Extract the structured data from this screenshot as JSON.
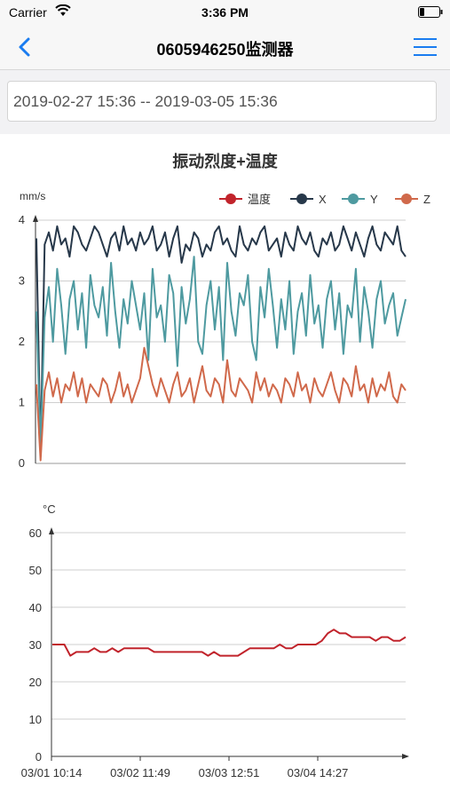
{
  "status_bar": {
    "carrier": "Carrier",
    "time": "3:36 PM"
  },
  "nav": {
    "title": "0605946250监测器",
    "back_icon": "chevron-left-icon",
    "menu_icon": "hamburger-menu-icon"
  },
  "date_range": {
    "value": "2019-02-27 15:36 -- 2019-03-05 15:36"
  },
  "colors": {
    "accent": "#1a7cf0",
    "temp": "#c1232b",
    "x": "#27384a",
    "y": "#4e9aa0",
    "z": "#d0694b"
  },
  "chart_data": [
    {
      "type": "line",
      "title": "振动烈度+温度",
      "ylabel": "mm/s",
      "ylim": [
        0,
        4
      ],
      "yticks": [
        "0",
        "1",
        "2",
        "3",
        "4"
      ],
      "legend": [
        "温度",
        "X",
        "Y",
        "Z"
      ],
      "legend_position": "top-right",
      "grid": true,
      "series": [
        {
          "name": "X",
          "color": "#27384a",
          "values": [
            3.7,
            0.2,
            3.6,
            3.8,
            3.5,
            3.9,
            3.6,
            3.7,
            3.4,
            3.9,
            3.8,
            3.6,
            3.5,
            3.7,
            3.9,
            3.8,
            3.6,
            3.4,
            3.7,
            3.8,
            3.5,
            3.9,
            3.6,
            3.7,
            3.5,
            3.8,
            3.6,
            3.7,
            3.9,
            3.5,
            3.6,
            3.8,
            3.4,
            3.7,
            3.9,
            3.3,
            3.6,
            3.5,
            3.8,
            3.7,
            3.4,
            3.6,
            3.5,
            3.8,
            3.9,
            3.6,
            3.7,
            3.5,
            3.4,
            3.9,
            3.6,
            3.5,
            3.7,
            3.6,
            3.8,
            3.9,
            3.5,
            3.6,
            3.7,
            3.4,
            3.8,
            3.6,
            3.5,
            3.9,
            3.7,
            3.6,
            3.8,
            3.5,
            3.4,
            3.7,
            3.6,
            3.8,
            3.5,
            3.6,
            3.9,
            3.7,
            3.5,
            3.8,
            3.6,
            3.4,
            3.7,
            3.9,
            3.6,
            3.5,
            3.8,
            3.7,
            3.6,
            3.9,
            3.5,
            3.4
          ]
        },
        {
          "name": "Y",
          "color": "#4e9aa0",
          "values": [
            2.5,
            0.3,
            2.4,
            2.9,
            2.0,
            3.2,
            2.6,
            1.8,
            2.7,
            3.0,
            2.2,
            2.8,
            1.9,
            3.1,
            2.6,
            2.4,
            2.9,
            2.1,
            3.3,
            2.5,
            1.9,
            2.7,
            2.3,
            3.0,
            2.6,
            2.2,
            2.8,
            1.7,
            3.2,
            2.4,
            2.6,
            2.0,
            3.1,
            2.8,
            1.6,
            2.9,
            2.3,
            2.7,
            3.4,
            2.0,
            1.8,
            2.6,
            3.0,
            2.2,
            2.9,
            1.7,
            3.3,
            2.5,
            2.1,
            2.8,
            2.6,
            3.1,
            2.0,
            1.7,
            2.9,
            2.4,
            3.2,
            2.6,
            1.9,
            2.7,
            2.2,
            3.0,
            1.8,
            2.5,
            2.8,
            2.1,
            3.1,
            2.3,
            2.6,
            1.9,
            2.7,
            3.0,
            2.2,
            2.8,
            1.8,
            2.6,
            2.4,
            3.2,
            2.0,
            2.9,
            2.5,
            1.9,
            2.7,
            3.0,
            2.3,
            2.6,
            2.8,
            2.1,
            2.4,
            2.7
          ]
        },
        {
          "name": "Z",
          "color": "#d0694b",
          "values": [
            1.3,
            0.05,
            1.2,
            1.5,
            1.1,
            1.4,
            1.0,
            1.3,
            1.2,
            1.5,
            1.1,
            1.4,
            1.0,
            1.3,
            1.2,
            1.1,
            1.4,
            1.3,
            1.0,
            1.2,
            1.5,
            1.1,
            1.3,
            1.0,
            1.2,
            1.4,
            1.9,
            1.6,
            1.3,
            1.1,
            1.4,
            1.2,
            1.0,
            1.3,
            1.5,
            1.1,
            1.2,
            1.4,
            1.0,
            1.3,
            1.6,
            1.2,
            1.1,
            1.4,
            1.3,
            1.0,
            1.7,
            1.2,
            1.1,
            1.4,
            1.3,
            1.2,
            1.0,
            1.5,
            1.2,
            1.4,
            1.1,
            1.3,
            1.2,
            1.0,
            1.4,
            1.3,
            1.1,
            1.5,
            1.2,
            1.3,
            1.0,
            1.4,
            1.2,
            1.1,
            1.3,
            1.5,
            1.2,
            1.0,
            1.4,
            1.3,
            1.1,
            1.6,
            1.2,
            1.3,
            1.0,
            1.4,
            1.1,
            1.3,
            1.2,
            1.5,
            1.1,
            1.0,
            1.3,
            1.2
          ]
        }
      ]
    },
    {
      "type": "line",
      "ylabel": "°C",
      "ylim": [
        0,
        60
      ],
      "yticks": [
        "0",
        "10",
        "20",
        "30",
        "40",
        "50",
        "60"
      ],
      "xticks": [
        "03/01 10:14",
        "03/02 11:49",
        "03/03 12:51",
        "03/04 14:27"
      ],
      "grid": true,
      "series": [
        {
          "name": "温度",
          "color": "#c1232b",
          "values": [
            30,
            30,
            30,
            27,
            28,
            28,
            28,
            29,
            28,
            28,
            29,
            28,
            29,
            29,
            29,
            29,
            29,
            28,
            28,
            28,
            28,
            28,
            28,
            28,
            28,
            28,
            27,
            28,
            27,
            27,
            27,
            27,
            28,
            29,
            29,
            29,
            29,
            29,
            30,
            29,
            29,
            30,
            30,
            30,
            30,
            31,
            33,
            34,
            33,
            33,
            32,
            32,
            32,
            32,
            31,
            32,
            32,
            31,
            31,
            32
          ]
        }
      ]
    }
  ]
}
